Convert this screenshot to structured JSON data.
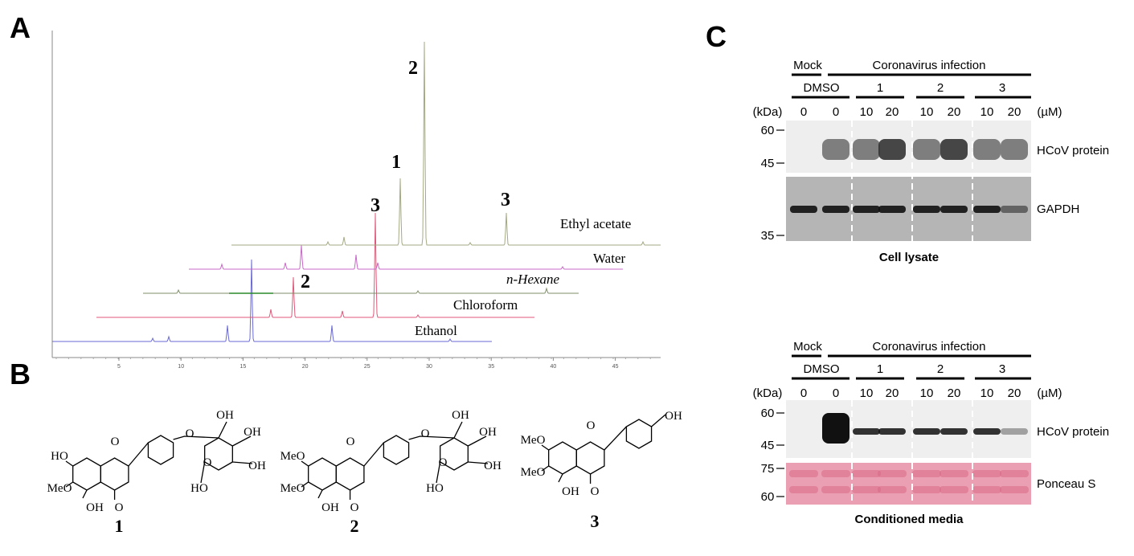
{
  "panel_a": {
    "label": "A",
    "x_ticks": [
      "5",
      "10",
      "15",
      "20",
      "25",
      "30",
      "35",
      "40",
      "45"
    ],
    "traces": [
      "Ethyl acetate",
      "Water",
      "n-Hexane",
      "Chloroform",
      "Ethanol"
    ],
    "peak_labels": [
      "2",
      "1",
      "3",
      "3",
      "2"
    ]
  },
  "panel_b": {
    "label": "B",
    "compounds": [
      {
        "number": "1",
        "labels": [
          "HO",
          "MeO",
          "OH",
          "O",
          "O",
          "O",
          "OH",
          "OH",
          "OH",
          "HO",
          "O"
        ]
      },
      {
        "number": "2",
        "labels": [
          "MeO",
          "MeO",
          "OH",
          "O",
          "O",
          "O",
          "OH",
          "OH",
          "OH",
          "HO",
          "O"
        ]
      },
      {
        "number": "3",
        "labels": [
          "MeO",
          "MeO",
          "OH",
          "O",
          "O",
          "OH"
        ]
      }
    ]
  },
  "panel_c": {
    "label": "C",
    "blots": [
      {
        "groups": [
          "Mock",
          "Coronavirus infection"
        ],
        "treatments": [
          "DMSO",
          "1",
          "2",
          "3"
        ],
        "unit_left": "(kDa)",
        "concentrations": [
          "0",
          "0",
          "10",
          "20",
          "10",
          "20",
          "10",
          "20"
        ],
        "unit_right": "(µM)",
        "markers": [
          "60",
          "45",
          "35"
        ],
        "bands": [
          "HCoV protein",
          "GAPDH"
        ],
        "caption": "Cell lysate"
      },
      {
        "groups": [
          "Mock",
          "Coronavirus infection"
        ],
        "treatments": [
          "DMSO",
          "1",
          "2",
          "3"
        ],
        "unit_left": "(kDa)",
        "concentrations": [
          "0",
          "0",
          "10",
          "20",
          "10",
          "20",
          "10",
          "20"
        ],
        "unit_right": "(µM)",
        "markers": [
          "60",
          "45",
          "75",
          "60"
        ],
        "bands": [
          "HCoV protein",
          "Ponceau S"
        ],
        "caption": "Conditioned media"
      }
    ]
  }
}
